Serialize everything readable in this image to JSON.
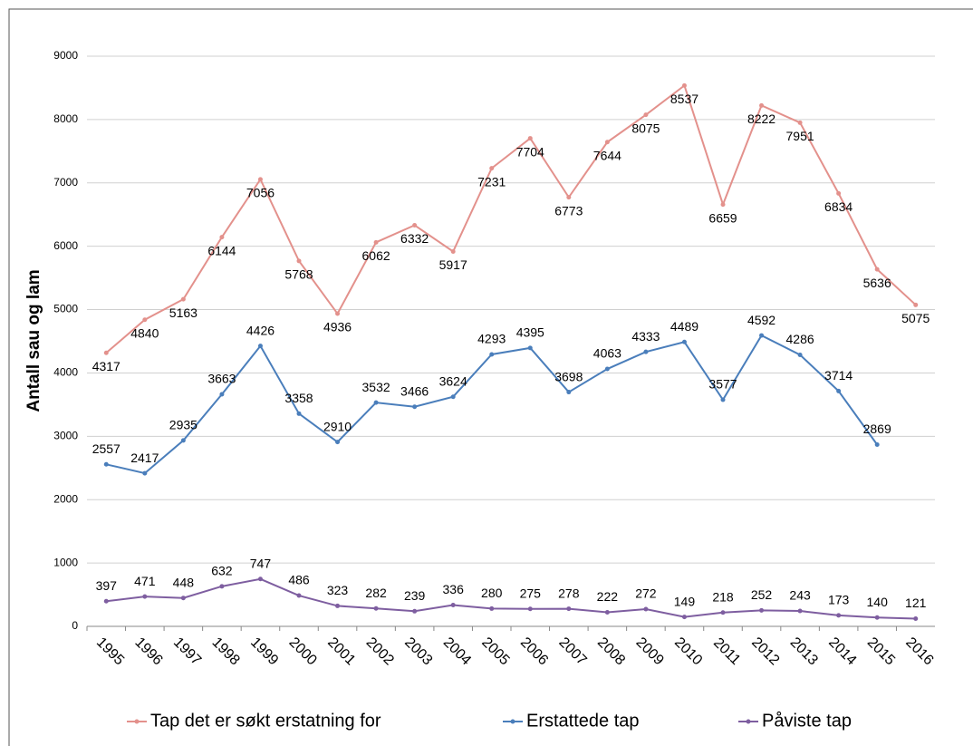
{
  "chart_data": {
    "type": "line",
    "y_label": "Antall sau og lam",
    "categories": [
      "1995",
      "1996",
      "1997",
      "1998",
      "1999",
      "2000",
      "2001",
      "2002",
      "2003",
      "2004",
      "2005",
      "2006",
      "2007",
      "2008",
      "2009",
      "2010",
      "2011",
      "2012",
      "2013",
      "2014",
      "2015",
      "2016"
    ],
    "series": [
      {
        "name": "Tap det er søkt erstatning for",
        "color": "#e3918c",
        "values": [
          4317,
          4840,
          5163,
          6144,
          7056,
          5768,
          4936,
          6062,
          6332,
          5917,
          7231,
          7704,
          6773,
          7644,
          8075,
          8537,
          6659,
          8222,
          7951,
          6834,
          5636,
          5075
        ]
      },
      {
        "name": "Erstattede tap",
        "color": "#4a7ebb",
        "values": [
          2557,
          2417,
          2935,
          3663,
          4426,
          3358,
          2910,
          3532,
          3466,
          3624,
          4293,
          4395,
          3698,
          4063,
          4333,
          4489,
          3577,
          4592,
          4286,
          3714,
          2869,
          null
        ]
      },
      {
        "name": "Påviste tap",
        "color": "#7e5ea0",
        "values": [
          397,
          471,
          448,
          632,
          747,
          486,
          323,
          282,
          239,
          336,
          280,
          275,
          278,
          222,
          272,
          149,
          218,
          252,
          243,
          173,
          140,
          121
        ]
      }
    ],
    "ylim": [
      0,
      9000
    ],
    "yticks": [
      0,
      1000,
      2000,
      3000,
      4000,
      5000,
      6000,
      7000,
      8000,
      9000
    ],
    "grid": true,
    "legend": "bottom"
  }
}
